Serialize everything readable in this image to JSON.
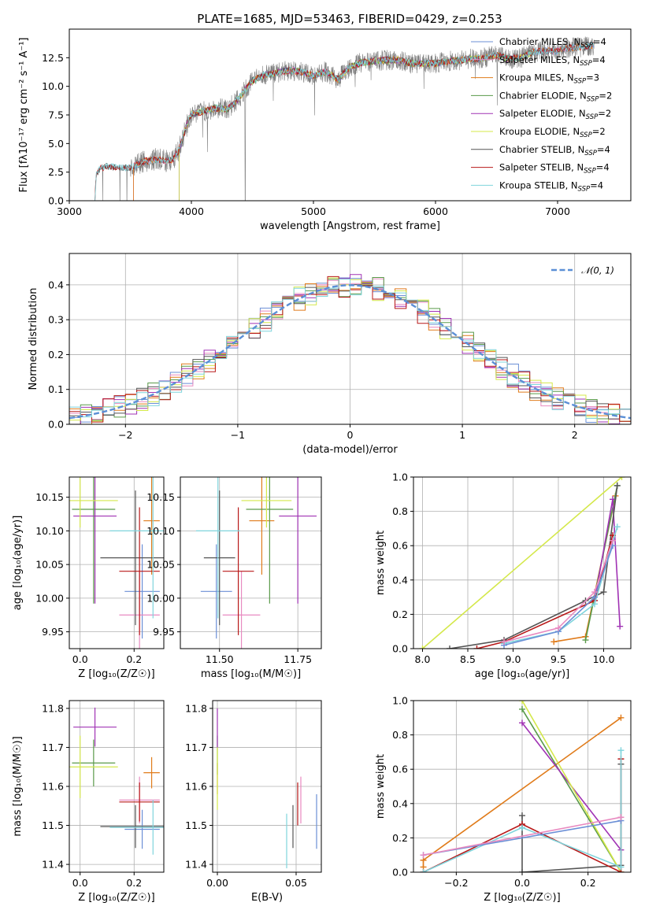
{
  "figure_title": "PLATE=1685, MJD=53463, FIBERID=0429, z=0.253",
  "colors": {
    "Chabrier MILES": "#6b8fd6",
    "Salpeter MILES": "#e88ac0",
    "Kroupa MILES": "#e07b1a",
    "Chabrier ELODIE": "#5a9a4a",
    "Salpeter ELODIE": "#a032b4",
    "Kroupa ELODIE": "#d4e84a",
    "Chabrier STELIB": "#555555",
    "Salpeter STELIB": "#b81818",
    "Kroupa STELIB": "#7fd4dc",
    "data": "#808080",
    "normal": "#5b8fd6"
  },
  "chart_data": [
    {
      "id": "spectrum",
      "type": "line",
      "title": "PLATE=1685, MJD=53463, FIBERID=0429, z=0.253",
      "xlabel": "wavelength [Angstrom, rest frame]",
      "ylabel": "Flux [fλ10⁻¹⁷ erg cm⁻² s⁻¹ A⁻¹]",
      "xlim": [
        3000,
        7600
      ],
      "ylim": [
        0,
        15
      ],
      "xticks": [
        3000,
        4000,
        5000,
        6000,
        7000
      ],
      "yticks": [
        0.0,
        2.5,
        5.0,
        7.5,
        10.0,
        12.5
      ],
      "grid": false,
      "legend": "upper right",
      "continuum": [
        [
          3210,
          0
        ],
        [
          3220,
          2.3
        ],
        [
          3250,
          2.8
        ],
        [
          3300,
          3.0
        ],
        [
          3400,
          2.9
        ],
        [
          3500,
          2.9
        ],
        [
          3600,
          3.4
        ],
        [
          3700,
          3.6
        ],
        [
          3800,
          3.5
        ],
        [
          3850,
          3.6
        ],
        [
          3900,
          4.5
        ],
        [
          3950,
          6.2
        ],
        [
          4000,
          7.6
        ],
        [
          4100,
          7.8
        ],
        [
          4200,
          8.1
        ],
        [
          4300,
          8.0
        ],
        [
          4400,
          9.1
        ],
        [
          4500,
          10.5
        ],
        [
          4600,
          11.0
        ],
        [
          4700,
          11.2
        ],
        [
          4800,
          11.4
        ],
        [
          4900,
          11.3
        ],
        [
          5000,
          10.9
        ],
        [
          5100,
          11.3
        ],
        [
          5200,
          10.6
        ],
        [
          5300,
          11.7
        ],
        [
          5400,
          12.1
        ],
        [
          5500,
          12.2
        ],
        [
          5600,
          12.3
        ],
        [
          5700,
          12.3
        ],
        [
          5800,
          12.0
        ],
        [
          5900,
          12.0
        ],
        [
          6000,
          12.0
        ],
        [
          6100,
          12.2
        ],
        [
          6200,
          12.3
        ],
        [
          6300,
          12.4
        ],
        [
          6400,
          12.5
        ],
        [
          6500,
          12.7
        ],
        [
          6600,
          12.4
        ],
        [
          6700,
          12.5
        ],
        [
          6800,
          13.0
        ],
        [
          6900,
          13.1
        ],
        [
          7000,
          13.1
        ],
        [
          7100,
          13.4
        ],
        [
          7200,
          13.4
        ],
        [
          7300,
          13.6
        ]
      ],
      "series": [
        {
          "name": "Chabrier MILES, N_SSP=4",
          "x_range": [
            3525,
            7300
          ]
        },
        {
          "name": "Salpeter MILES, N_SSP=4",
          "x_range": [
            3525,
            7300
          ]
        },
        {
          "name": "Kroupa MILES, N_SSP=3",
          "x_range": [
            3525,
            7300
          ]
        },
        {
          "name": "Chabrier ELODIE, N_SSP=2",
          "x_range": [
            3900,
            6800
          ]
        },
        {
          "name": "Salpeter ELODIE, N_SSP=2",
          "x_range": [
            3900,
            6800
          ]
        },
        {
          "name": "Kroupa ELODIE, N_SSP=2",
          "x_range": [
            3900,
            6800
          ]
        },
        {
          "name": "Chabrier STELIB, N_SSP=4",
          "x_range": [
            3210,
            7300
          ]
        },
        {
          "name": "Salpeter STELIB, N_SSP=4",
          "x_range": [
            3210,
            7300
          ]
        },
        {
          "name": "Kroupa STELIB, N_SSP=4",
          "x_range": [
            3210,
            7300
          ]
        }
      ]
    },
    {
      "id": "residuals",
      "type": "line",
      "xlabel": "(data-model)/error",
      "ylabel": "Normed distribution",
      "xlim": [
        -2.5,
        2.5
      ],
      "ylim": [
        0,
        0.49
      ],
      "xticks": [
        -2,
        -1,
        0,
        1,
        2
      ],
      "yticks": [
        0.0,
        0.1,
        0.2,
        0.3,
        0.4
      ],
      "grid": true,
      "legend": "upper right",
      "normal_label": "𝒩(0, 1)",
      "bin_width": 0.1
    },
    {
      "id": "age_vs_Z",
      "type": "scatter",
      "xlabel": "Z [log₁₀(Z/Z☉)]",
      "ylabel": "age  [log₁₀(age/yr)]",
      "xlim": [
        -0.04,
        0.31
      ],
      "ylim": [
        9.925,
        10.18
      ],
      "xticks": [
        0.0,
        0.2
      ],
      "yticks": [
        9.95,
        10.0,
        10.05,
        10.1,
        10.15
      ],
      "grid": true,
      "points": [
        {
          "series": "Chabrier MILES",
          "x": 0.23,
          "y": 10.01,
          "xerr": 0.065,
          "yerr": 0.07
        },
        {
          "series": "Salpeter MILES",
          "x": 0.22,
          "y": 9.975,
          "xerr": 0.075,
          "yerr": 0.065
        },
        {
          "series": "Kroupa MILES",
          "x": 0.265,
          "y": 10.115,
          "xerr": 0.03,
          "yerr": 0.08
        },
        {
          "series": "Chabrier ELODIE",
          "x": 0.05,
          "y": 10.132,
          "xerr": 0.08,
          "yerr": 0.14
        },
        {
          "series": "Salpeter ELODIE",
          "x": 0.055,
          "y": 10.122,
          "xerr": 0.08,
          "yerr": 0.13
        },
        {
          "series": "Kroupa ELODIE",
          "x": 0.0,
          "y": 10.145,
          "xerr": 0.14,
          "yerr": 0.04
        },
        {
          "series": "Chabrier STELIB",
          "x": 0.205,
          "y": 10.06,
          "xerr": 0.13,
          "yerr": 0.1
        },
        {
          "series": "Salpeter STELIB",
          "x": 0.22,
          "y": 10.04,
          "xerr": 0.075,
          "yerr": 0.095
        },
        {
          "series": "Kroupa STELIB",
          "x": 0.27,
          "y": 10.1,
          "xerr": 0.16,
          "yerr": 0.13
        }
      ]
    },
    {
      "id": "age_vs_mass",
      "type": "scatter",
      "xlabel": "mass [log₁₀(M/M☉)]",
      "ylabel": "",
      "xlim": [
        11.375,
        11.825
      ],
      "ylim": [
        9.925,
        10.18
      ],
      "xticks": [
        11.5,
        11.75
      ],
      "yticks": [
        9.95,
        10.0,
        10.05,
        10.1,
        10.15
      ],
      "grid": true,
      "points": [
        {
          "series": "Chabrier MILES",
          "x": 11.49,
          "y": 10.01,
          "xerr": 0.05,
          "yerr": 0.07
        },
        {
          "series": "Salpeter MILES",
          "x": 11.57,
          "y": 9.975,
          "xerr": 0.06,
          "yerr": 0.065
        },
        {
          "series": "Kroupa MILES",
          "x": 11.635,
          "y": 10.115,
          "xerr": 0.04,
          "yerr": 0.08
        },
        {
          "series": "Chabrier ELODIE",
          "x": 11.66,
          "y": 10.132,
          "xerr": 0.075,
          "yerr": 0.14
        },
        {
          "series": "Salpeter ELODIE",
          "x": 11.75,
          "y": 10.122,
          "xerr": 0.06,
          "yerr": 0.13
        },
        {
          "series": "Kroupa ELODIE",
          "x": 11.65,
          "y": 10.145,
          "xerr": 0.08,
          "yerr": 0.04
        },
        {
          "series": "Chabrier STELIB",
          "x": 11.5,
          "y": 10.06,
          "xerr": 0.05,
          "yerr": 0.1
        },
        {
          "series": "Salpeter STELIB",
          "x": 11.56,
          "y": 10.04,
          "xerr": 0.05,
          "yerr": 0.095
        },
        {
          "series": "Kroupa STELIB",
          "x": 11.495,
          "y": 10.1,
          "xerr": 0.07,
          "yerr": 0.13
        }
      ]
    },
    {
      "id": "weight_vs_age",
      "type": "line",
      "xlabel": "age  [log₁₀(age/yr)]",
      "ylabel": "mass weight",
      "xlim": [
        7.9,
        10.3
      ],
      "ylim": [
        0,
        1
      ],
      "xticks": [
        8.0,
        8.5,
        9.0,
        9.5,
        10.0
      ],
      "yticks": [
        0.0,
        0.2,
        0.4,
        0.6,
        0.8,
        1.0
      ],
      "grid": true,
      "series": [
        {
          "name": "Kroupa ELODIE",
          "points": [
            [
              8.0,
              0.0
            ],
            [
              10.2,
              1.0
            ]
          ]
        },
        {
          "name": "Kroupa MILES",
          "points": [
            [
              9.45,
              0.04
            ],
            [
              9.8,
              0.07
            ],
            [
              10.13,
              0.89
            ]
          ]
        },
        {
          "name": "Chabrier ELODIE",
          "points": [
            [
              9.8,
              0.05
            ],
            [
              10.15,
              0.95
            ]
          ]
        },
        {
          "name": "Salpeter ELODIE",
          "points": [
            [
              9.9,
              0.28
            ],
            [
              10.1,
              0.87
            ],
            [
              10.18,
              0.13
            ]
          ]
        },
        {
          "name": "Chabrier STELIB",
          "points": [
            [
              8.3,
              0.0
            ],
            [
              8.9,
              0.05
            ],
            [
              9.8,
              0.28
            ],
            [
              10.0,
              0.33
            ],
            [
              10.15,
              0.95
            ]
          ]
        },
        {
          "name": "Salpeter STELIB",
          "points": [
            [
              8.6,
              0.0
            ],
            [
              8.9,
              0.04
            ],
            [
              9.9,
              0.28
            ],
            [
              10.1,
              0.66
            ]
          ]
        },
        {
          "name": "Kroupa STELIB",
          "points": [
            [
              8.9,
              0.03
            ],
            [
              9.5,
              0.1
            ],
            [
              9.9,
              0.26
            ],
            [
              10.15,
              0.71
            ]
          ]
        },
        {
          "name": "Chabrier MILES",
          "points": [
            [
              8.9,
              0.02
            ],
            [
              9.5,
              0.1
            ],
            [
              9.9,
              0.3
            ],
            [
              10.1,
              0.6
            ]
          ]
        },
        {
          "name": "Salpeter MILES",
          "points": [
            [
              8.9,
              0.04
            ],
            [
              9.5,
              0.12
            ],
            [
              9.9,
              0.33
            ],
            [
              10.1,
              0.63
            ]
          ]
        }
      ]
    },
    {
      "id": "mass_vs_Z",
      "type": "scatter",
      "xlabel": "Z [log₁₀(Z/Z☉)]",
      "ylabel": "mass [log₁₀(M/M☉)]",
      "xlim": [
        -0.04,
        0.31
      ],
      "ylim": [
        11.38,
        11.82
      ],
      "xticks": [
        0.0,
        0.2
      ],
      "yticks": [
        11.4,
        11.5,
        11.6,
        11.7,
        11.8
      ],
      "grid": true,
      "points": [
        {
          "series": "Chabrier MILES",
          "x": 0.23,
          "y": 11.49,
          "xerr": 0.065,
          "yerr": 0.05
        },
        {
          "series": "Salpeter MILES",
          "x": 0.22,
          "y": 11.565,
          "xerr": 0.075,
          "yerr": 0.06
        },
        {
          "series": "Kroupa MILES",
          "x": 0.265,
          "y": 11.635,
          "xerr": 0.03,
          "yerr": 0.04
        },
        {
          "series": "Chabrier ELODIE",
          "x": 0.05,
          "y": 11.66,
          "xerr": 0.08,
          "yerr": 0.06
        },
        {
          "series": "Salpeter ELODIE",
          "x": 0.055,
          "y": 11.752,
          "xerr": 0.08,
          "yerr": 0.05
        },
        {
          "series": "Kroupa ELODIE",
          "x": 0.0,
          "y": 11.65,
          "xerr": 0.14,
          "yerr": 0.08
        },
        {
          "series": "Chabrier STELIB",
          "x": 0.205,
          "y": 11.497,
          "xerr": 0.13,
          "yerr": 0.055
        },
        {
          "series": "Salpeter STELIB",
          "x": 0.22,
          "y": 11.56,
          "xerr": 0.075,
          "yerr": 0.05
        },
        {
          "series": "Kroupa STELIB",
          "x": 0.27,
          "y": 11.495,
          "xerr": 0.16,
          "yerr": 0.07
        }
      ]
    },
    {
      "id": "mass_vs_ebv",
      "type": "scatter",
      "xlabel": "E(B-V)",
      "ylabel": "",
      "xlim": [
        -0.003,
        0.066
      ],
      "ylim": [
        11.38,
        11.82
      ],
      "xticks": [
        0.0,
        0.05
      ],
      "yticks": [
        11.4,
        11.5,
        11.6,
        11.7,
        11.8
      ],
      "grid": true,
      "points": [
        {
          "series": "Chabrier MILES",
          "x": 0.063,
          "y": 11.51,
          "xerr": 0,
          "yerr": 0.07
        },
        {
          "series": "Salpeter MILES",
          "x": 0.053,
          "y": 11.565,
          "xerr": 0,
          "yerr": 0.06
        },
        {
          "series": "Kroupa MILES",
          "x": 0.0,
          "y": 11.62,
          "xerr": 0,
          "yerr": 0.04
        },
        {
          "series": "Chabrier ELODIE",
          "x": 0.0,
          "y": 11.68,
          "xerr": 0,
          "yerr": 0.05
        },
        {
          "series": "Salpeter ELODIE",
          "x": 0.0,
          "y": 11.75,
          "xerr": 0,
          "yerr": 0.05
        },
        {
          "series": "Kroupa ELODIE",
          "x": 0.0,
          "y": 11.62,
          "xerr": 0,
          "yerr": 0.08
        },
        {
          "series": "Chabrier STELIB",
          "x": 0.048,
          "y": 11.497,
          "xerr": 0,
          "yerr": 0.055
        },
        {
          "series": "Salpeter STELIB",
          "x": 0.051,
          "y": 11.555,
          "xerr": 0,
          "yerr": 0.055
        },
        {
          "series": "Kroupa STELIB",
          "x": 0.044,
          "y": 11.46,
          "xerr": 0,
          "yerr": 0.07
        }
      ]
    },
    {
      "id": "weight_vs_Z",
      "type": "line",
      "xlabel": "Z [log₁₀(Z/Z☉)]",
      "ylabel": "mass weight",
      "xlim": [
        -0.33,
        0.33
      ],
      "ylim": [
        0,
        1
      ],
      "xticks": [
        -0.2,
        0.0,
        0.2
      ],
      "yticks": [
        0.0,
        0.2,
        0.4,
        0.6,
        0.8,
        1.0
      ],
      "grid": true,
      "series": [
        {
          "name": "Kroupa MILES",
          "points": [
            [
              -0.3,
              0.03
            ],
            [
              -0.3,
              0.07
            ],
            [
              0.3,
              0.9
            ]
          ]
        },
        {
          "name": "Chabrier ELODIE",
          "points": [
            [
              0.0,
              0.95
            ],
            [
              0.3,
              0.0
            ]
          ]
        },
        {
          "name": "Salpeter ELODIE",
          "points": [
            [
              0.0,
              0.87
            ],
            [
              0.3,
              0.13
            ]
          ]
        },
        {
          "name": "Kroupa ELODIE",
          "points": [
            [
              0.0,
              1.0
            ],
            [
              0.3,
              0.0
            ]
          ]
        },
        {
          "name": "Chabrier STELIB",
          "points": [
            [
              0.0,
              0.33
            ],
            [
              0.0,
              0.0
            ],
            [
              0.3,
              0.04
            ],
            [
              0.3,
              0.63
            ]
          ]
        },
        {
          "name": "Salpeter STELIB",
          "points": [
            [
              -0.3,
              0.0
            ],
            [
              0.0,
              0.28
            ],
            [
              0.3,
              0.0
            ],
            [
              0.3,
              0.66
            ]
          ]
        },
        {
          "name": "Kroupa STELIB",
          "points": [
            [
              -0.3,
              0.0
            ],
            [
              0.0,
              0.26
            ],
            [
              0.3,
              0.03
            ],
            [
              0.3,
              0.71
            ]
          ]
        },
        {
          "name": "Chabrier MILES",
          "points": [
            [
              -0.3,
              0.1
            ],
            [
              0.3,
              0.3
            ]
          ]
        },
        {
          "name": "Salpeter MILES",
          "points": [
            [
              -0.3,
              0.1
            ],
            [
              0.3,
              0.32
            ]
          ]
        }
      ]
    }
  ]
}
